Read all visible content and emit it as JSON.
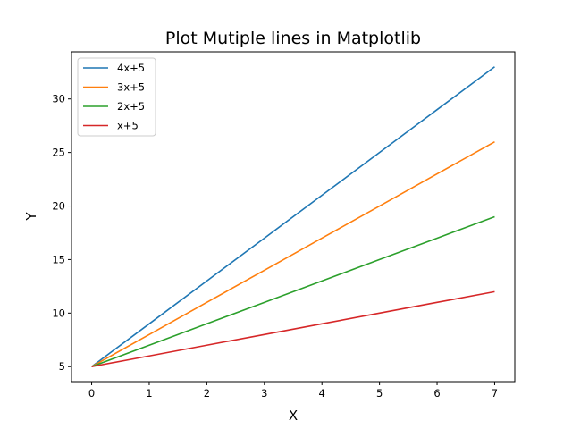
{
  "chart_data": {
    "type": "line",
    "title": "Plot Mutiple lines in Matplotlib",
    "xlabel": "X",
    "ylabel": "Y",
    "x": [
      0,
      1,
      2,
      3,
      4,
      5,
      6,
      7
    ],
    "xlim": [
      -0.35,
      7.35
    ],
    "ylim": [
      3.6,
      34.4
    ],
    "xticks": [
      "0",
      "1",
      "2",
      "3",
      "4",
      "5",
      "6",
      "7"
    ],
    "yticks": [
      "5",
      "10",
      "15",
      "20",
      "25",
      "30"
    ],
    "grid": false,
    "legend_position": "upper left",
    "series": [
      {
        "name": "4x+5",
        "color": "#1f77b4",
        "values": [
          5,
          9,
          13,
          17,
          21,
          25,
          29,
          33
        ]
      },
      {
        "name": "3x+5",
        "color": "#ff7f0e",
        "values": [
          5,
          8,
          11,
          14,
          17,
          20,
          23,
          26
        ]
      },
      {
        "name": "2x+5",
        "color": "#2ca02c",
        "values": [
          5,
          7,
          9,
          11,
          13,
          15,
          17,
          19
        ]
      },
      {
        "name": "x+5",
        "color": "#d62728",
        "values": [
          5,
          6,
          7,
          8,
          9,
          10,
          11,
          12
        ]
      }
    ]
  }
}
